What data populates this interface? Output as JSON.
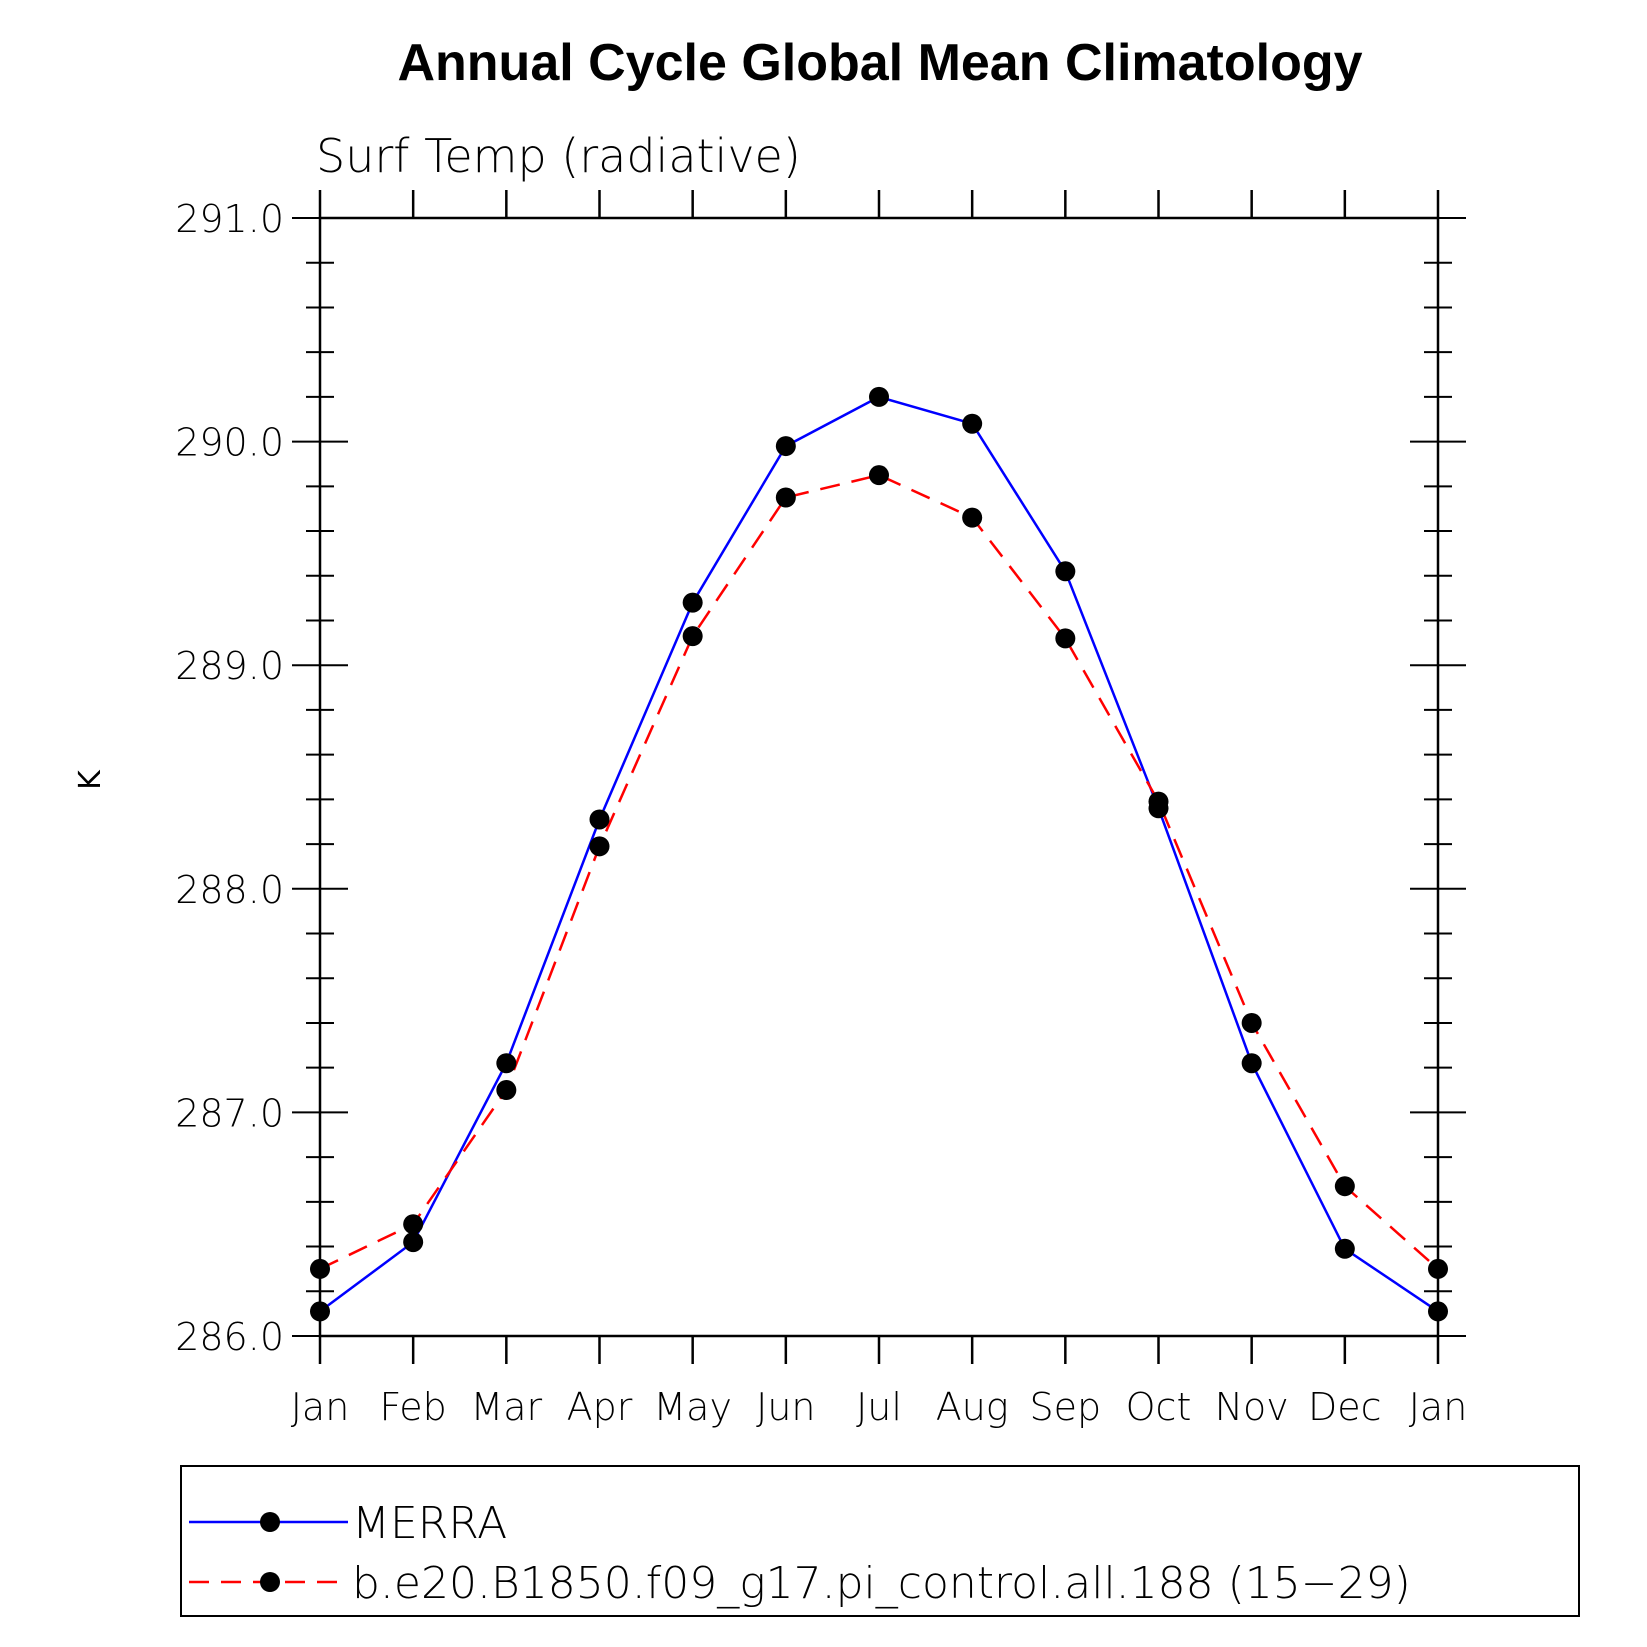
{
  "chart_data": {
    "type": "line",
    "title": "Annual Cycle Global Mean Climatology",
    "subtitle": "Surf Temp (radiative)",
    "ylabel": "K",
    "xlabel": "",
    "categories": [
      "Jan",
      "Feb",
      "Mar",
      "Apr",
      "May",
      "Jun",
      "Jul",
      "Aug",
      "Sep",
      "Oct",
      "Nov",
      "Dec",
      "Jan"
    ],
    "ylim": [
      286.0,
      291.0
    ],
    "yticks": [
      286.0,
      287.0,
      288.0,
      289.0,
      290.0,
      291.0
    ],
    "ytick_labels": [
      "286.0",
      "287.0",
      "288.0",
      "289.0",
      "290.0",
      "291.0"
    ],
    "grid": false,
    "legend_position": "bottom",
    "series": [
      {
        "name": "MERRA",
        "color": "#0000ff",
        "dash": "solid",
        "marker": "circle",
        "values": [
          286.11,
          286.42,
          287.22,
          288.31,
          289.28,
          289.98,
          290.2,
          290.08,
          289.42,
          288.36,
          287.22,
          286.39,
          286.11
        ]
      },
      {
        "name": "b.e20.B1850.f09_g17.pi_control.all.188 (15−29)",
        "color": "#ff0000",
        "dash": "dashed",
        "marker": "circle",
        "values": [
          286.3,
          286.5,
          287.1,
          288.19,
          289.13,
          289.75,
          289.85,
          289.66,
          289.12,
          288.39,
          287.4,
          286.67,
          286.3
        ]
      }
    ]
  }
}
